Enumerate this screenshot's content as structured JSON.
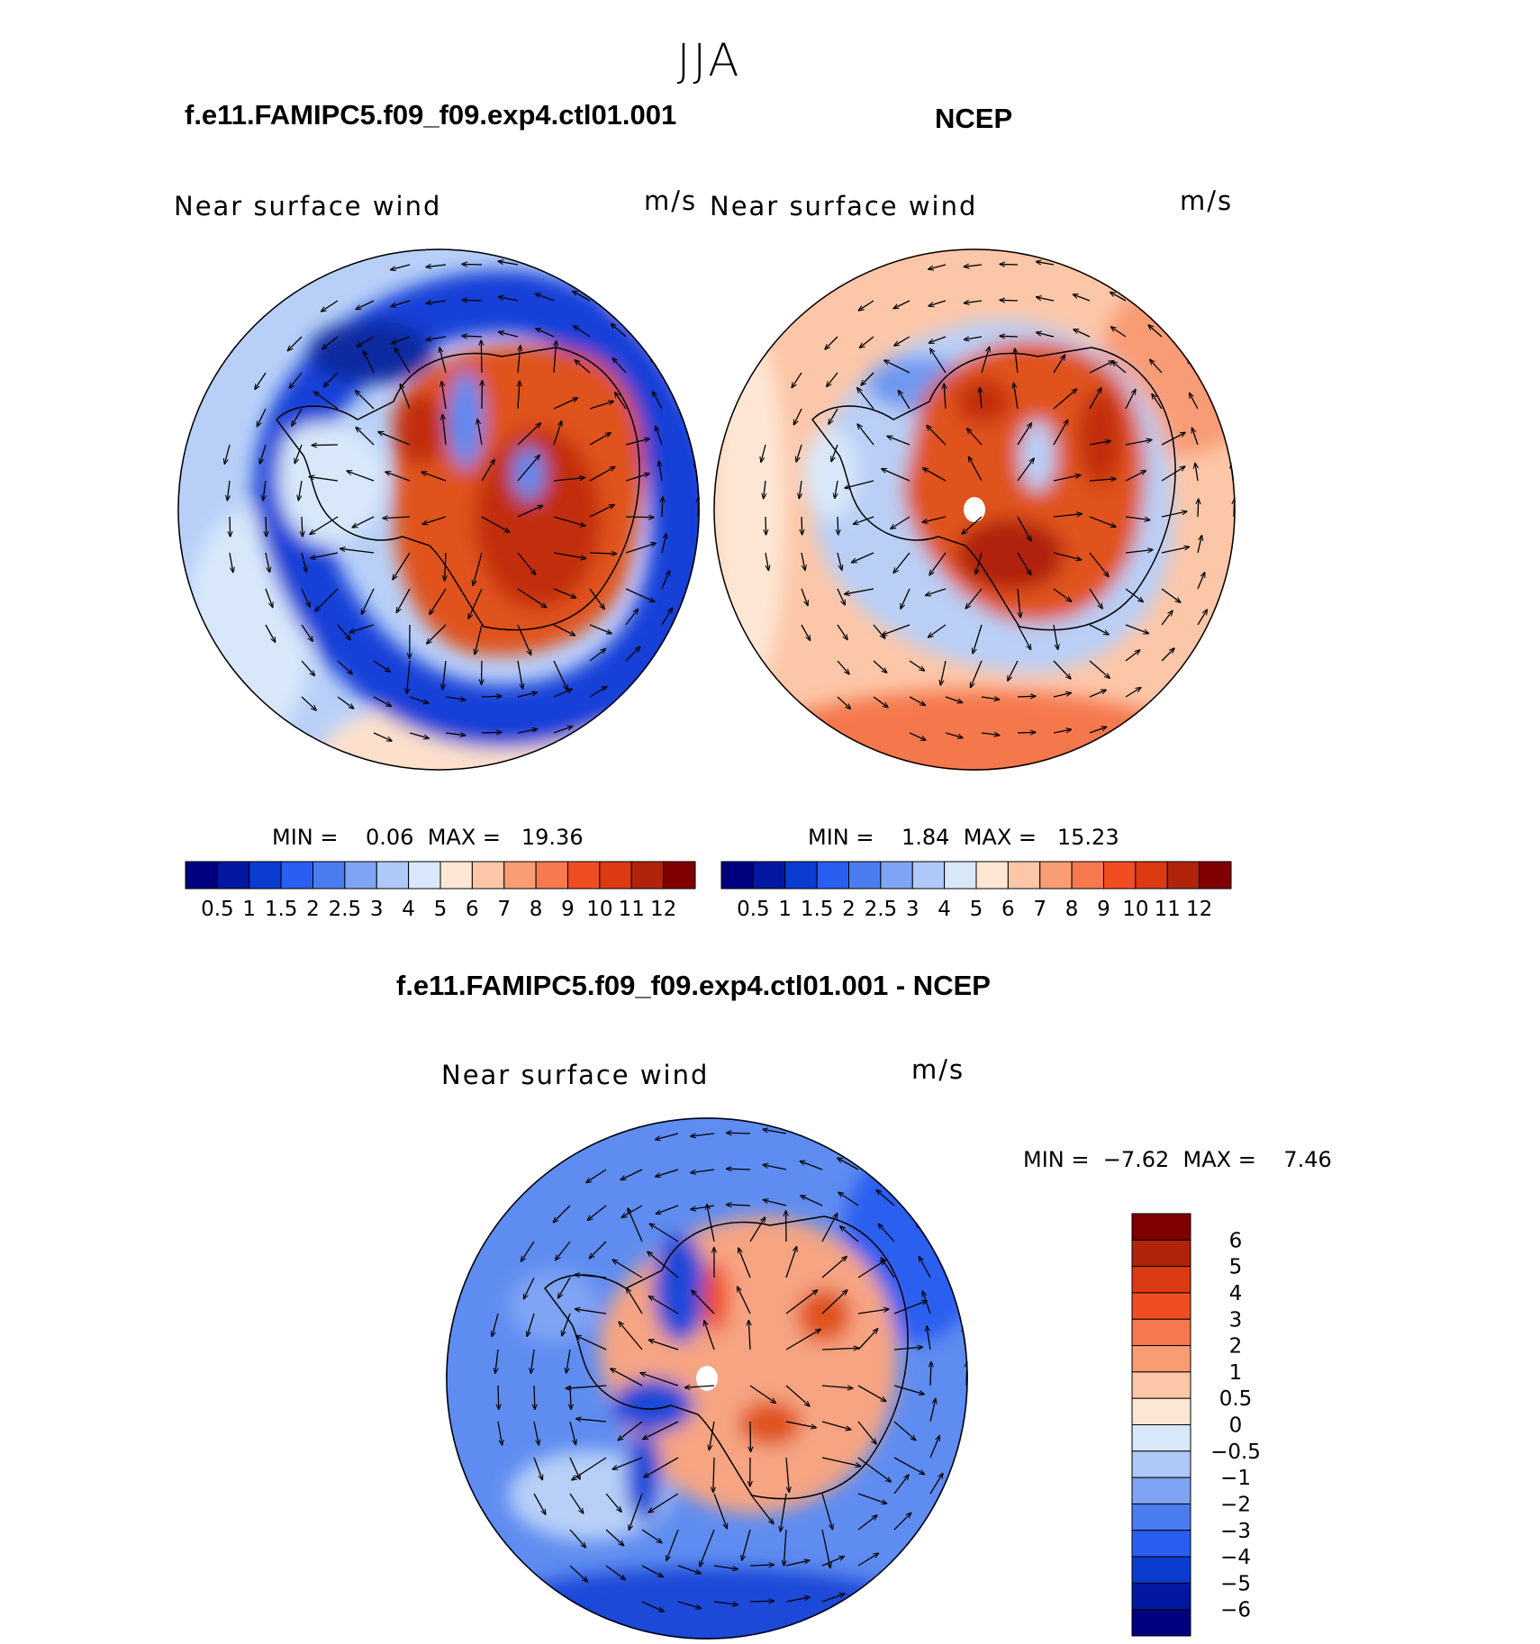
{
  "page": {
    "season_title": "JJA"
  },
  "panels": {
    "model": {
      "title": "f.e11.FAMIPC5.f09_f09.exp4.ctl01.001",
      "variable": "Near surface wind",
      "units": "m/s",
      "min_max": "MIN =    0.06  MAX =   19.36"
    },
    "obs": {
      "title": "NCEP",
      "variable": "Near surface wind",
      "units": "m/s",
      "min_max": "MIN =    1.84  MAX =   15.23"
    },
    "diff": {
      "title": "f.e11.FAMIPC5.f09_f09.exp4.ctl01.001 - NCEP",
      "variable": "Near surface wind",
      "units": "m/s",
      "min_max": "MIN =  −7.62  MAX =    7.46"
    }
  },
  "chart_data": [
    {
      "type": "heatmap",
      "projection": "south-polar-stereographic",
      "title": "f.e11.FAMIPC5.f09_f09.exp4.ctl01.001",
      "variable": "Near surface wind",
      "units": "m/s",
      "min": 0.06,
      "max": 19.36,
      "colorbar": {
        "orientation": "horizontal",
        "tick_labels": [
          "0.5",
          "1",
          "1.5",
          "2",
          "2.5",
          "3",
          "4",
          "5",
          "6",
          "7",
          "8",
          "9",
          "10",
          "11",
          "12"
        ],
        "colors": [
          "#00007f",
          "#0218a0",
          "#0b3cd0",
          "#2a5ef0",
          "#4b7cf0",
          "#7fa4f4",
          "#aec8f8",
          "#d8e8fa",
          "#fde7d4",
          "#fcc6a8",
          "#f89c74",
          "#f5784e",
          "#f04e22",
          "#dc3a12",
          "#b0240c",
          "#7f0000"
        ]
      }
    },
    {
      "type": "heatmap",
      "projection": "south-polar-stereographic",
      "title": "NCEP",
      "variable": "Near surface wind",
      "units": "m/s",
      "min": 1.84,
      "max": 15.23,
      "colorbar": {
        "orientation": "horizontal",
        "tick_labels": [
          "0.5",
          "1",
          "1.5",
          "2",
          "2.5",
          "3",
          "4",
          "5",
          "6",
          "7",
          "8",
          "9",
          "10",
          "11",
          "12"
        ],
        "colors": [
          "#00007f",
          "#0218a0",
          "#0b3cd0",
          "#2a5ef0",
          "#4b7cf0",
          "#7fa4f4",
          "#aec8f8",
          "#d8e8fa",
          "#fde7d4",
          "#fcc6a8",
          "#f89c74",
          "#f5784e",
          "#f04e22",
          "#dc3a12",
          "#b0240c",
          "#7f0000"
        ]
      }
    },
    {
      "type": "heatmap",
      "projection": "south-polar-stereographic",
      "title": "f.e11.FAMIPC5.f09_f09.exp4.ctl01.001 - NCEP",
      "variable": "Near surface wind",
      "units": "m/s",
      "min": -7.62,
      "max": 7.46,
      "colorbar": {
        "orientation": "vertical",
        "tick_labels": [
          "6",
          "5",
          "4",
          "3",
          "2",
          "1",
          "0.5",
          "0",
          "−0.5",
          "−1",
          "−2",
          "−3",
          "−4",
          "−5",
          "−6"
        ],
        "colors": [
          "#7f0000",
          "#b0240c",
          "#dc3a12",
          "#f04e22",
          "#f5784e",
          "#f89c74",
          "#fcc6a8",
          "#fde7d4",
          "#d8e8fa",
          "#aec8f8",
          "#7fa4f4",
          "#4b7cf0",
          "#2a5ef0",
          "#0b3cd0",
          "#0218a0",
          "#00007f"
        ]
      }
    }
  ]
}
